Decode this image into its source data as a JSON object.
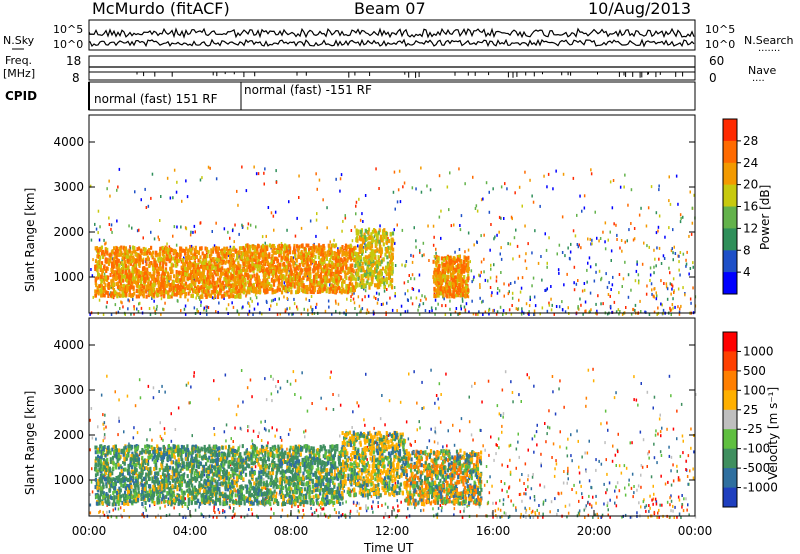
{
  "header": {
    "station": "McMurdo (fitACF)",
    "beam": "Beam 07",
    "date": "10/Aug/2013"
  },
  "top_panels": {
    "nsky_label": "N.Sky",
    "nsearch_label": "N.Search",
    "noise_ticks": [
      "10^5",
      "10^0"
    ],
    "freq_label": "Freq.",
    "freq_unit": "[MHz]",
    "freq_ticks": [
      "18",
      "8"
    ],
    "nave_label": "Nave",
    "nave_ticks": [
      "60",
      "0"
    ],
    "cpid_label": "CPID",
    "cpid_segments": [
      {
        "label": "normal (fast) 151 RF",
        "start_hour": 0,
        "end_hour": 6
      },
      {
        "label": "normal (fast) -151 RF",
        "start_hour": 6,
        "end_hour": 24
      }
    ]
  },
  "chart_data": [
    {
      "type": "heatmap",
      "name": "power",
      "ylabel": "Slant Range [km]",
      "xlabel": "",
      "ylim": [
        200,
        4600
      ],
      "xlim": [
        0,
        24
      ],
      "yticks": [
        1000,
        2000,
        3000,
        4000
      ],
      "colorbar": {
        "label": "Power [dB]",
        "ticks": [
          "4",
          "8",
          "12",
          "16",
          "20",
          "24",
          "28"
        ],
        "colors": [
          "#0000ff",
          "#1e50c8",
          "#2f8f5a",
          "#63b24b",
          "#c7c90e",
          "#f39a00",
          "#ff6a00",
          "#ff2a00"
        ]
      },
      "regions": [
        {
          "t0": 0.2,
          "t1": 6.0,
          "r0": 600,
          "r1": 1700,
          "level": 28
        },
        {
          "t0": 6.0,
          "t1": 10.5,
          "r0": 700,
          "r1": 1750,
          "level": 28
        },
        {
          "t0": 10.5,
          "t1": 12.0,
          "r0": 800,
          "r1": 2100,
          "level": 24
        },
        {
          "t0": 13.6,
          "t1": 15.0,
          "r0": 600,
          "r1": 1500,
          "level": 28
        }
      ]
    },
    {
      "type": "heatmap",
      "name": "velocity",
      "ylabel": "Slant Range [km]",
      "xlabel": "Time UT",
      "ylim": [
        200,
        4600
      ],
      "xlim": [
        0,
        24
      ],
      "yticks": [
        1000,
        2000,
        3000,
        4000
      ],
      "xticks": [
        "00:00",
        "04:00",
        "08:00",
        "12:00",
        "16:00",
        "20:00",
        "00:00"
      ],
      "colorbar": {
        "label": "Velocity [m s⁻¹]",
        "ticks": [
          "1000",
          "500",
          "100",
          "25",
          "-25",
          "-100",
          "-500",
          "-1000"
        ],
        "colors": [
          "#1f3fbf",
          "#2f6f9f",
          "#3f8f5f",
          "#5fbf3f",
          "#bfbfbf",
          "#ffb000",
          "#ff7f00",
          "#ff4000",
          "#ff0000"
        ]
      },
      "regions": [
        {
          "t0": 0.2,
          "t1": 10.0,
          "r0": 500,
          "r1": 1800,
          "level": 100
        },
        {
          "t0": 10.0,
          "t1": 12.5,
          "r0": 700,
          "r1": 2100,
          "level": -100
        },
        {
          "t0": 12.5,
          "t1": 15.5,
          "r0": 500,
          "r1": 1700,
          "level": -500
        }
      ]
    }
  ]
}
